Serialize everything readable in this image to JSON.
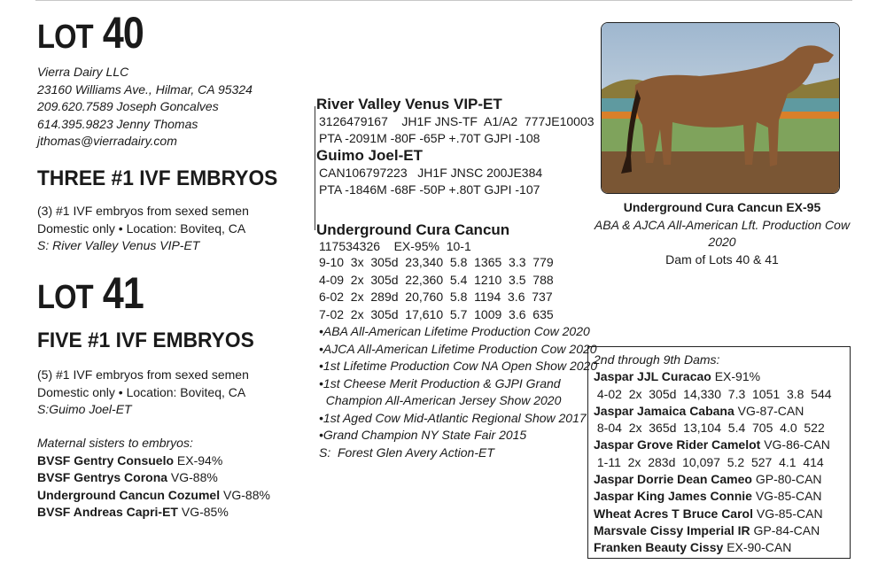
{
  "lot40": {
    "label": "LOT",
    "number": "40",
    "contact": [
      "Vierra Dairy LLC",
      "23160 Williams Ave., Hilmar, CA  95324",
      "209.620.7589 Joseph Goncalves",
      "614.395.9823 Jenny Thomas",
      "jthomas@vierradairy.com"
    ],
    "heading": "THREE #1 IVF EMBRYOS",
    "lines": [
      "(3) #1 IVF embryos from sexed semen",
      "Domestic only  •  Location: Boviteq, CA"
    ],
    "sire": "S:  River Valley Venus VIP-ET"
  },
  "lot41": {
    "label": "LOT",
    "number": "41",
    "heading": "FIVE #1 IVF EMBRYOS",
    "lines": [
      "(5) #1 IVF embryos from sexed semen",
      "Domestic only  •  Location: Boviteq, CA"
    ],
    "sire": "S:Guimo Joel-ET"
  },
  "maternal": {
    "heading": "Maternal sisters to embryos:",
    "items": [
      {
        "name": "BVSF Gentry Consuelo",
        "score": "EX-94%"
      },
      {
        "name": "BVSF Gentrys Corona",
        "score": "VG-88%"
      },
      {
        "name": "Underground Cancun Cozumel",
        "score": "VG-88%"
      },
      {
        "name": "BVSF Andreas Capri-ET",
        "score": "VG-85%"
      }
    ]
  },
  "sires": [
    {
      "name": "River Valley Venus VIP-ET",
      "lines": [
        "3126479167    JH1F JNS-TF  A1/A2  777JE10003",
        "PTA -2091M -80F -65P +.70T GJPI -108"
      ]
    },
    {
      "name": "Guimo Joel-ET",
      "lines": [
        "CAN106797223   JH1F JNSC 200JE384",
        "PTA -1846M -68F -50P +.80T GJPI -107"
      ]
    }
  ],
  "dam": {
    "name": "Underground Cura Cancun",
    "id_line": "117534326    EX-95%  10-1",
    "records": [
      "9-10  3x  305d  23,340  5.8  1365  3.3  779",
      "4-09  2x  305d  22,360  5.4  1210  3.5  788",
      "6-02  2x  289d  20,760  5.8  1194  3.6  737",
      "7-02  2x  305d  17,610  5.7  1009  3.6  635"
    ],
    "honors": [
      "•ABA All-American Lifetime Production Cow 2020",
      "•AJCA All-American Lifetime Production Cow 2020",
      "•1st Lifetime Production Cow NA Open Show 2020",
      "•1st Cheese Merit Production & GJPI Grand",
      "  Champion All-American Jersey Show 2020",
      "•1st Aged Cow Mid-Atlantic Regional Show 2017",
      "•Grand Champion NY State Fair 2015",
      "S:  Forest Glen Avery Action-ET"
    ]
  },
  "photo": {
    "caption_title": "Underground Cura Cancun EX-95",
    "caption_line2": "ABA & AJCA All-American Lft. Production Cow 2020",
    "caption_line3": "Dam of Lots 40 & 41"
  },
  "dams_box": {
    "heading": "2nd through 9th Dams:",
    "entries": [
      {
        "name": "Jaspar JJL Curacao",
        "score": "EX-91%",
        "record": " 4-02  2x  305d  14,330  7.3  1051  3.8  544"
      },
      {
        "name": "Jaspar Jamaica Cabana",
        "score": "VG-87-CAN",
        "record": " 8-04  2x  365d  13,104  5.4  705  4.0  522"
      },
      {
        "name": "Jaspar Grove Rider Camelot",
        "score": "VG-86-CAN",
        "record": " 1-11  2x  283d  10,097  5.2  527  4.1  414"
      },
      {
        "name": "Jaspar Dorrie Dean Cameo",
        "score": "GP-80-CAN"
      },
      {
        "name": "Jaspar King James Connie",
        "score": "VG-85-CAN"
      },
      {
        "name": "Wheat Acres T Bruce Carol",
        "score": "VG-85-CAN"
      },
      {
        "name": "Marsvale Cissy Imperial IR",
        "score": "GP-84-CAN"
      },
      {
        "name": "Franken Beauty Cissy",
        "score": "EX-90-CAN"
      }
    ]
  }
}
